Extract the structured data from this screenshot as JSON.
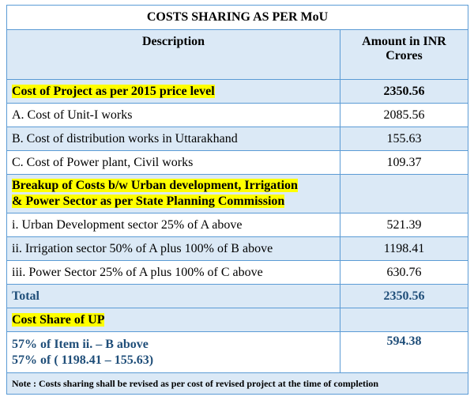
{
  "title": "COSTS SHARING AS PER MoU",
  "header": {
    "description": "Description",
    "amount_line1": "Amount in INR",
    "amount_line2": "Crores"
  },
  "rows": [
    {
      "description": "Cost of Project as per 2015 price level",
      "amount": "2350.56"
    },
    {
      "description": "A. Cost  of Unit-I works",
      "amount": "2085.56"
    },
    {
      "description": "B. Cost of distribution works in Uttarakhand",
      "amount": "155.63"
    },
    {
      "description": "C. Cost of Power plant, Civil works",
      "amount": "109.37"
    },
    {
      "description_line1": "Breakup of Costs b/w Urban development, Irrigation",
      "description_line2": "& Power Sector as per State Planning Commission",
      "amount": ""
    },
    {
      "description": "i. Urban Development sector 25% of A above",
      "amount": "521.39"
    },
    {
      "description": "ii. Irrigation sector 50% of A plus 100% of B above",
      "amount": "1198.41"
    },
    {
      "description": "iii. Power Sector 25% of A plus 100% of C above",
      "amount": "630.76"
    },
    {
      "description": "Total",
      "amount": "2350.56"
    },
    {
      "description": "Cost Share of UP",
      "amount": ""
    },
    {
      "description_line1": "57% of Item ii. – B above",
      "description_line2": "57% of  ( 1198.41 – 155.63)",
      "amount": "594.38"
    }
  ],
  "note": "Note : Costs sharing shall be revised as per cost of revised project at the time of completion",
  "colors": {
    "border": "#5b9bd5",
    "shade": "#dbe9f6",
    "highlight": "#ffff00",
    "blue_text": "#1f4e79"
  }
}
